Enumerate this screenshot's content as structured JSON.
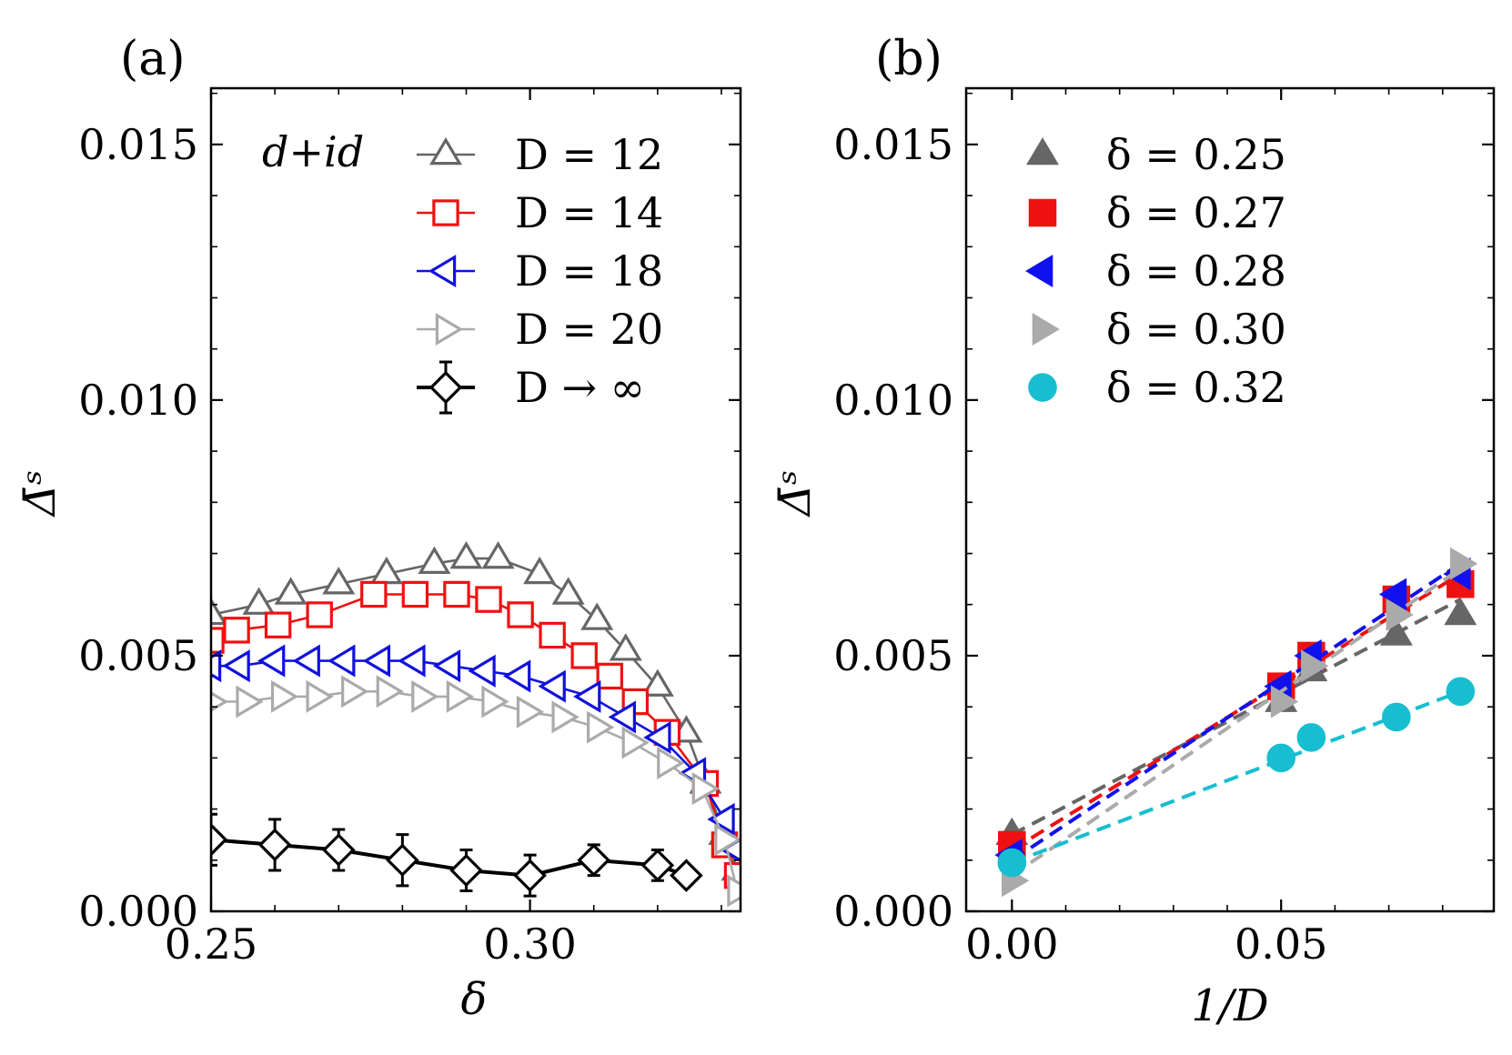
{
  "chart_data": [
    {
      "panel": "(a)",
      "type": "line",
      "xlabel": "δ",
      "ylabel": "Δ̄ˢ",
      "xlim": [
        0.25,
        0.333
      ],
      "ylim": [
        0.0,
        0.0161
      ],
      "xticks": [
        0.25,
        0.3
      ],
      "xtick_labels": [
        "0.25",
        "0.30"
      ],
      "yticks": [
        0.0,
        0.005,
        0.01,
        0.015
      ],
      "ytick_labels": [
        "0.000",
        "0.005",
        "0.010",
        "0.015"
      ],
      "annotation": "d+id",
      "series": [
        {
          "name": "D = 12",
          "color": "#666666",
          "marker": "triangle-up",
          "filled": false,
          "x": [
            0.25,
            0.2575,
            0.2625,
            0.27,
            0.2775,
            0.285,
            0.29,
            0.295,
            0.3015,
            0.306,
            0.3105,
            0.315,
            0.32,
            0.3245,
            0.3275,
            0.3305,
            0.3325
          ],
          "y": [
            0.0058,
            0.006,
            0.0062,
            0.0064,
            0.0066,
            0.0068,
            0.0069,
            0.0069,
            0.0066,
            0.0062,
            0.0057,
            0.0051,
            0.0044,
            0.0035,
            0.0025,
            0.0015,
            0.0008
          ]
        },
        {
          "name": "D = 14",
          "color": "#ee1111",
          "marker": "square",
          "filled": false,
          "x": [
            0.25,
            0.254,
            0.2605,
            0.267,
            0.2755,
            0.282,
            0.2885,
            0.2935,
            0.2985,
            0.3035,
            0.3085,
            0.3125,
            0.3165,
            0.3215,
            0.3275,
            0.3305,
            0.3325
          ],
          "y": [
            0.0053,
            0.0055,
            0.0056,
            0.0058,
            0.0062,
            0.0062,
            0.0062,
            0.0061,
            0.0058,
            0.0054,
            0.005,
            0.0046,
            0.0041,
            0.0035,
            0.0025,
            0.0013,
            0.0007
          ]
        },
        {
          "name": "D = 18",
          "color": "#1111dd",
          "marker": "triangle-left",
          "filled": false,
          "x": [
            0.25,
            0.2545,
            0.26,
            0.2655,
            0.271,
            0.2765,
            0.282,
            0.2875,
            0.293,
            0.2985,
            0.304,
            0.3095,
            0.315,
            0.3205,
            0.326,
            0.3305,
            0.3325
          ],
          "y": [
            0.0048,
            0.0048,
            0.0049,
            0.0049,
            0.0049,
            0.0049,
            0.0049,
            0.0048,
            0.0047,
            0.0046,
            0.0044,
            0.0042,
            0.0038,
            0.0034,
            0.0027,
            0.0018,
            0.0012
          ]
        },
        {
          "name": "D = 20",
          "color": "#aaaaaa",
          "marker": "triangle-right",
          "filled": false,
          "x": [
            0.25,
            0.2555,
            0.261,
            0.2665,
            0.272,
            0.2775,
            0.283,
            0.2885,
            0.294,
            0.2995,
            0.305,
            0.3105,
            0.316,
            0.3215,
            0.327,
            0.3305,
            0.3325
          ],
          "y": [
            0.0041,
            0.0041,
            0.0042,
            0.0042,
            0.0043,
            0.0043,
            0.0042,
            0.0042,
            0.0041,
            0.0039,
            0.0038,
            0.0036,
            0.0033,
            0.0029,
            0.0024,
            0.0014,
            0.0004
          ]
        },
        {
          "name": "D → ∞",
          "color": "#000000",
          "marker": "diamond",
          "filled": false,
          "x": [
            0.25,
            0.26,
            0.27,
            0.28,
            0.29,
            0.3,
            0.31,
            0.32,
            0.3245
          ],
          "y": [
            0.0014,
            0.0013,
            0.0012,
            0.001,
            0.0008,
            0.0007,
            0.001,
            0.0009,
            0.0007
          ],
          "yerr": [
            0.0005,
            0.0005,
            0.0004,
            0.0005,
            0.0004,
            0.0004,
            0.0003,
            0.0003,
            0.0
          ]
        }
      ]
    },
    {
      "panel": "(b)",
      "type": "scatter",
      "xlabel": "1/D",
      "ylabel": "Δ̄ˢ",
      "xlim": [
        -0.0085,
        0.0895
      ],
      "ylim": [
        0.0,
        0.0161
      ],
      "xticks": [
        0.0,
        0.05
      ],
      "xtick_labels": [
        "0.00",
        "0.05"
      ],
      "yticks": [
        0.0,
        0.005,
        0.01,
        0.015
      ],
      "ytick_labels": [
        "0.000",
        "0.005",
        "0.010",
        "0.015"
      ],
      "series": [
        {
          "name": "δ = 0.25",
          "color": "#666666",
          "marker": "triangle-up",
          "filled": true,
          "x": [
            0.0,
            0.05,
            0.0556,
            0.0714,
            0.0833
          ],
          "y": [
            0.0015,
            0.0041,
            0.0047,
            0.0054,
            0.0058
          ],
          "fit": {
            "x": [
              0.0,
              0.0833
            ],
            "y": [
              0.0015,
              0.0061
            ]
          }
        },
        {
          "name": "δ = 0.27",
          "color": "#ee1111",
          "marker": "square",
          "filled": true,
          "x": [
            0.0,
            0.05,
            0.0556,
            0.0714,
            0.0833
          ],
          "y": [
            0.0013,
            0.0044,
            0.005,
            0.0061,
            0.0064
          ],
          "fit": {
            "x": [
              0.0,
              0.0833
            ],
            "y": [
              0.0012,
              0.0066
            ]
          }
        },
        {
          "name": "δ = 0.28",
          "color": "#1111ee",
          "marker": "triangle-left",
          "filled": true,
          "x": [
            0.0,
            0.05,
            0.0556,
            0.0714,
            0.0833
          ],
          "y": [
            0.0011,
            0.0044,
            0.005,
            0.0062,
            0.0066
          ],
          "fit": {
            "x": [
              0.0,
              0.0833
            ],
            "y": [
              0.001,
              0.0068
            ]
          }
        },
        {
          "name": "δ = 0.30",
          "color": "#aaaaaa",
          "marker": "triangle-right",
          "filled": true,
          "x": [
            0.0,
            0.05,
            0.0556,
            0.0714,
            0.0833
          ],
          "y": [
            0.0006,
            0.0041,
            0.0048,
            0.0058,
            0.0068
          ],
          "fit": {
            "x": [
              0.0,
              0.0833
            ],
            "y": [
              0.0007,
              0.0067
            ]
          }
        },
        {
          "name": "δ = 0.32",
          "color": "#17becf",
          "marker": "circle",
          "filled": true,
          "x": [
            0.0,
            0.05,
            0.0556,
            0.0714,
            0.0833
          ],
          "y": [
            0.00095,
            0.003,
            0.0034,
            0.0038,
            0.0043
          ],
          "fit": {
            "x": [
              0.0,
              0.0833
            ],
            "y": [
              0.00095,
              0.0043
            ]
          }
        }
      ]
    }
  ]
}
